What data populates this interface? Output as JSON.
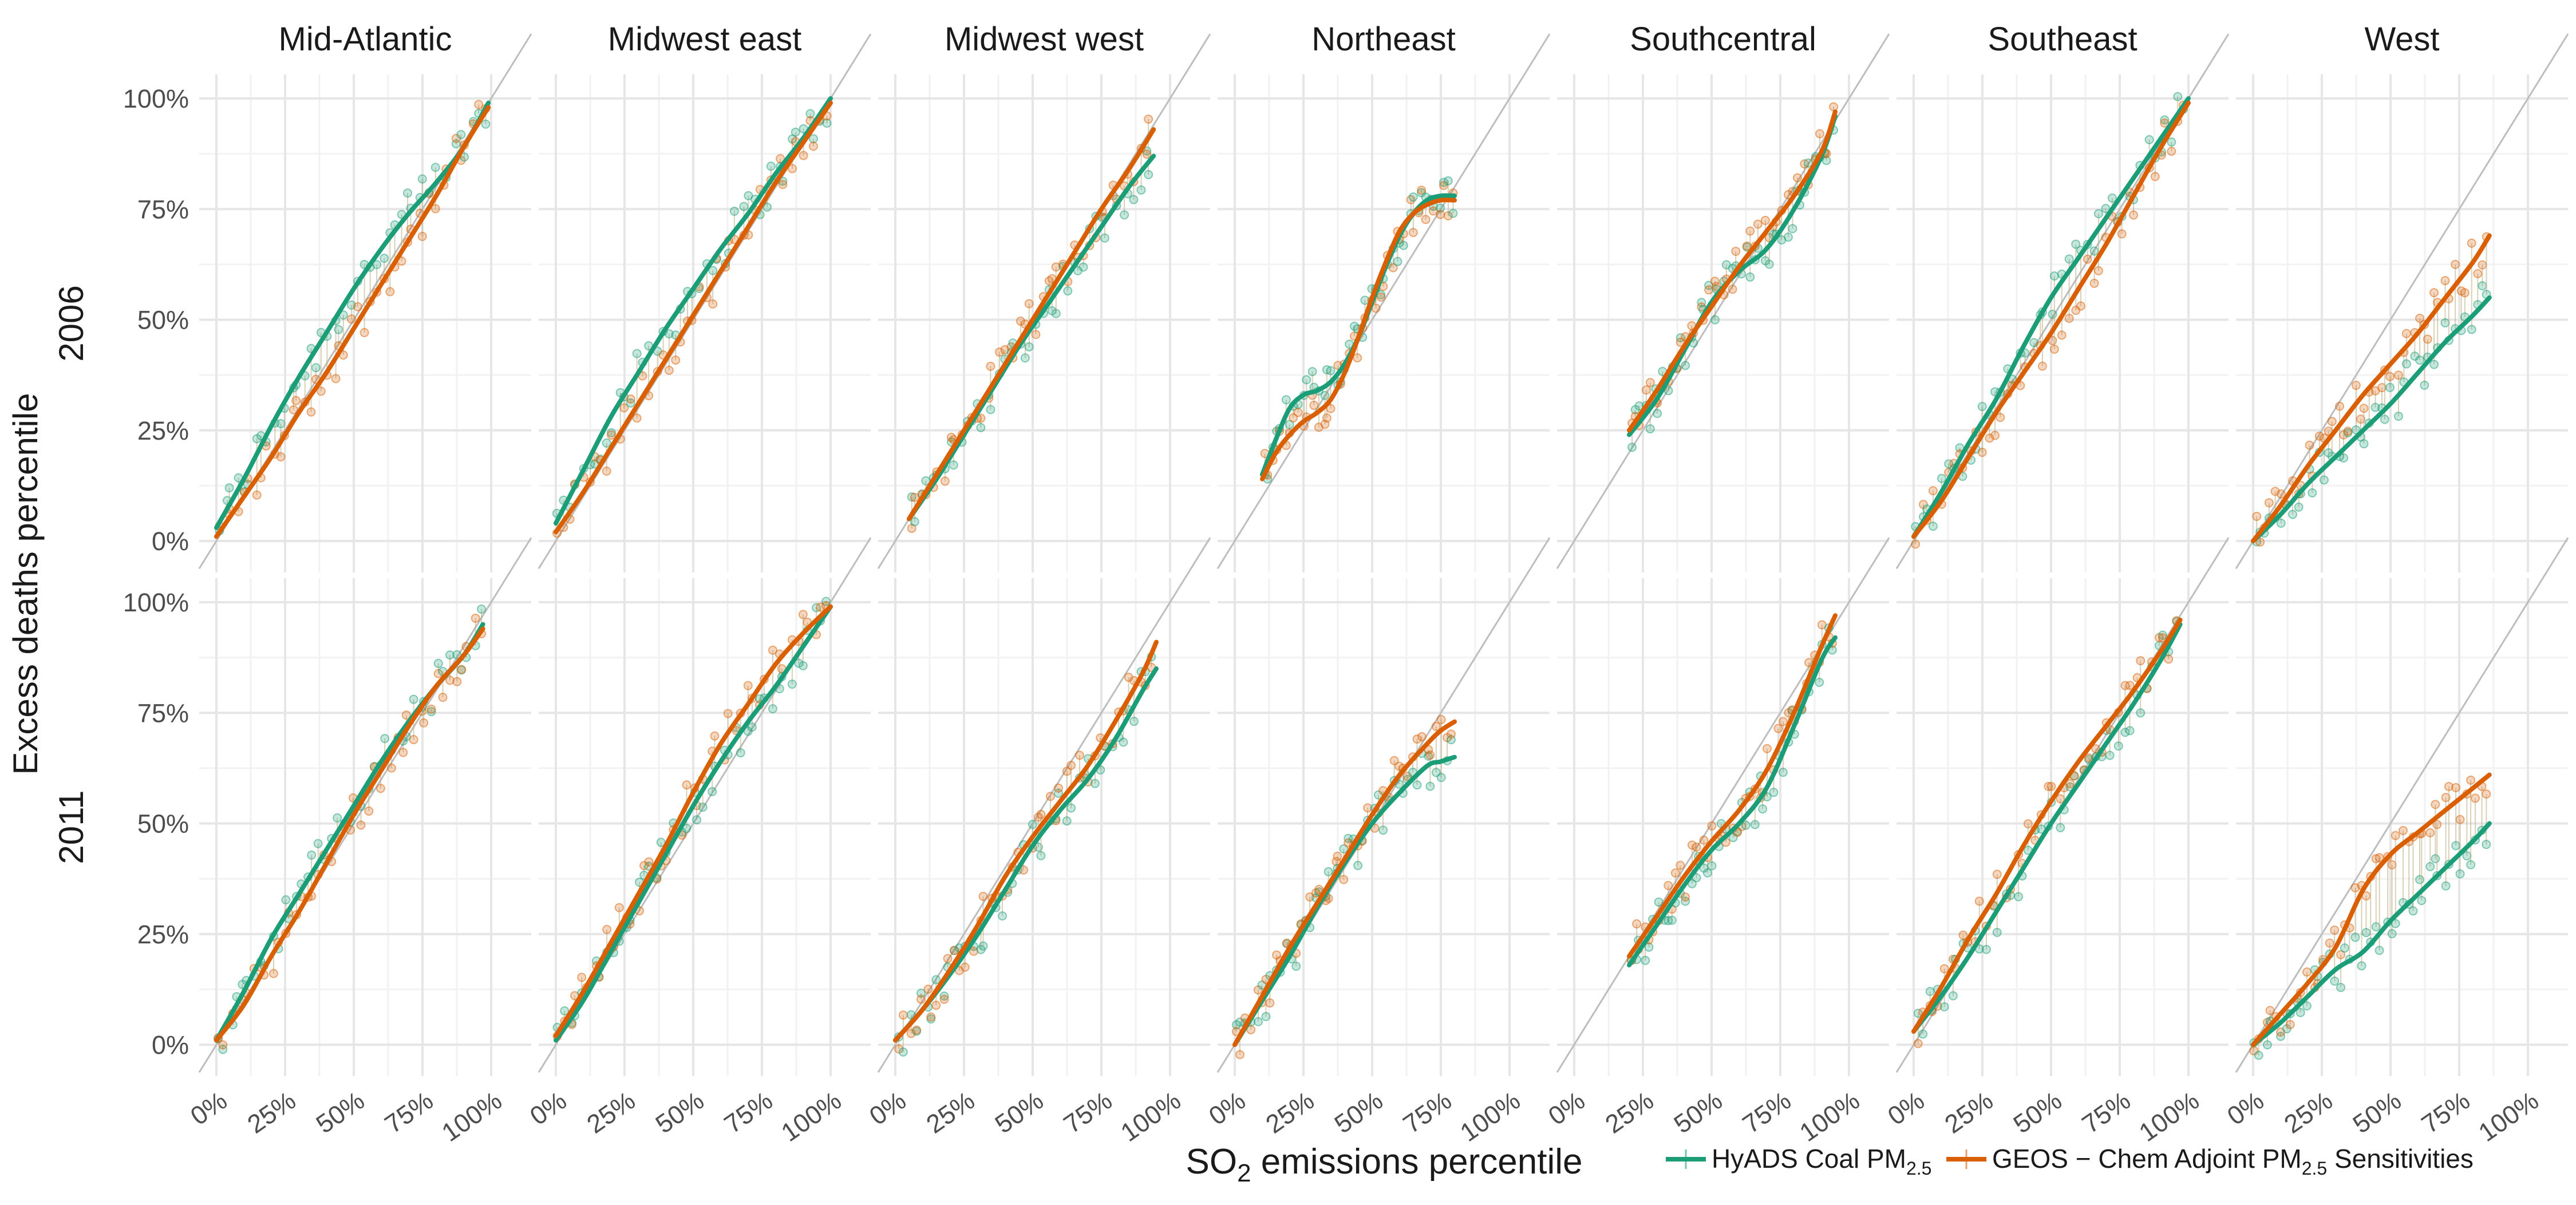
{
  "chart_data": {
    "type": "line",
    "facet_rows": [
      "2006",
      "2011"
    ],
    "facet_cols": [
      "Mid-Atlantic",
      "Midwest east",
      "Midwest west",
      "Northeast",
      "Southcentral",
      "Southeast",
      "West"
    ],
    "xlabel": "SO2 emissions percentile",
    "xlabel_parts": {
      "prefix": "SO",
      "subscript": "2",
      "suffix": " emissions percentile"
    },
    "ylabel": "Excess deaths percentile",
    "x_ticks": [
      "0%",
      "25%",
      "50%",
      "75%",
      "100%"
    ],
    "y_ticks": [
      "0%",
      "25%",
      "50%",
      "75%",
      "100%"
    ],
    "xlim": [
      0,
      100
    ],
    "ylim": [
      0,
      100
    ],
    "grid": true,
    "reference_line": "y = x",
    "legend_position": "bottom",
    "series": [
      {
        "name": "HyADS Coal PM2.5",
        "legend_parts": {
          "main": "HyADS Coal PM",
          "sub": "2.5",
          "tail": ""
        },
        "color": "#1b9e77"
      },
      {
        "name": "GEOS − Chem Adjoint PM2.5 Sensitivities",
        "legend_parts": {
          "main": "GEOS − Chem Adjoint PM",
          "sub": "2.5",
          "tail": " Sensitivities"
        },
        "color": "#d95f02"
      }
    ],
    "panels": [
      {
        "row": "2006",
        "col": "Mid-Atlantic",
        "hyads": [
          [
            0,
            3
          ],
          [
            10,
            14
          ],
          [
            20,
            26
          ],
          [
            30,
            37
          ],
          [
            40,
            47
          ],
          [
            50,
            57
          ],
          [
            60,
            66
          ],
          [
            70,
            74
          ],
          [
            80,
            81
          ],
          [
            90,
            89
          ],
          [
            99,
            99
          ]
        ],
        "geos": [
          [
            0,
            1
          ],
          [
            10,
            10
          ],
          [
            20,
            19
          ],
          [
            30,
            29
          ],
          [
            40,
            38
          ],
          [
            50,
            48
          ],
          [
            60,
            58
          ],
          [
            70,
            68
          ],
          [
            80,
            78
          ],
          [
            90,
            89
          ],
          [
            99,
            98
          ]
        ]
      },
      {
        "row": "2006",
        "col": "Midwest east",
        "hyads": [
          [
            0,
            4
          ],
          [
            10,
            16
          ],
          [
            20,
            28
          ],
          [
            30,
            38
          ],
          [
            40,
            48
          ],
          [
            50,
            57
          ],
          [
            60,
            66
          ],
          [
            70,
            74
          ],
          [
            80,
            83
          ],
          [
            90,
            91
          ],
          [
            100,
            100
          ]
        ],
        "geos": [
          [
            0,
            2
          ],
          [
            10,
            11
          ],
          [
            20,
            21
          ],
          [
            30,
            31
          ],
          [
            40,
            41
          ],
          [
            50,
            51
          ],
          [
            60,
            61
          ],
          [
            70,
            71
          ],
          [
            80,
            81
          ],
          [
            90,
            90
          ],
          [
            100,
            99
          ]
        ]
      },
      {
        "row": "2006",
        "col": "Midwest west",
        "hyads": [
          [
            5,
            5
          ],
          [
            15,
            14
          ],
          [
            25,
            24
          ],
          [
            35,
            34
          ],
          [
            45,
            44
          ],
          [
            55,
            53
          ],
          [
            65,
            62
          ],
          [
            75,
            71
          ],
          [
            85,
            80
          ],
          [
            94,
            87
          ]
        ],
        "geos": [
          [
            5,
            5
          ],
          [
            15,
            15
          ],
          [
            25,
            25
          ],
          [
            35,
            35
          ],
          [
            45,
            45
          ],
          [
            55,
            55
          ],
          [
            65,
            65
          ],
          [
            75,
            75
          ],
          [
            85,
            84
          ],
          [
            94,
            93
          ]
        ]
      },
      {
        "row": "2006",
        "col": "Northeast",
        "hyads": [
          [
            10,
            15
          ],
          [
            15,
            23
          ],
          [
            20,
            30
          ],
          [
            25,
            33
          ],
          [
            30,
            34
          ],
          [
            35,
            36
          ],
          [
            40,
            40
          ],
          [
            45,
            46
          ],
          [
            50,
            54
          ],
          [
            55,
            62
          ],
          [
            60,
            69
          ],
          [
            65,
            74
          ],
          [
            70,
            77
          ],
          [
            75,
            78
          ],
          [
            80,
            78
          ]
        ],
        "geos": [
          [
            10,
            14
          ],
          [
            15,
            20
          ],
          [
            20,
            24
          ],
          [
            25,
            27
          ],
          [
            30,
            29
          ],
          [
            35,
            32
          ],
          [
            40,
            38
          ],
          [
            45,
            46
          ],
          [
            50,
            55
          ],
          [
            55,
            63
          ],
          [
            60,
            70
          ],
          [
            65,
            74
          ],
          [
            70,
            76
          ],
          [
            75,
            77
          ],
          [
            80,
            77
          ]
        ]
      },
      {
        "row": "2006",
        "col": "Southcentral",
        "hyads": [
          [
            20,
            24
          ],
          [
            30,
            32
          ],
          [
            40,
            43
          ],
          [
            50,
            54
          ],
          [
            60,
            61
          ],
          [
            70,
            66
          ],
          [
            80,
            75
          ],
          [
            90,
            87
          ],
          [
            95,
            96
          ]
        ],
        "geos": [
          [
            20,
            25
          ],
          [
            30,
            34
          ],
          [
            40,
            44
          ],
          [
            50,
            53
          ],
          [
            60,
            62
          ],
          [
            70,
            70
          ],
          [
            80,
            78
          ],
          [
            90,
            88
          ],
          [
            95,
            97
          ]
        ]
      },
      {
        "row": "2006",
        "col": "Southeast",
        "hyads": [
          [
            0,
            1
          ],
          [
            10,
            11
          ],
          [
            20,
            22
          ],
          [
            30,
            32
          ],
          [
            40,
            44
          ],
          [
            50,
            55
          ],
          [
            60,
            64
          ],
          [
            70,
            73
          ],
          [
            80,
            82
          ],
          [
            90,
            91
          ],
          [
            100,
            100
          ]
        ],
        "geos": [
          [
            0,
            1
          ],
          [
            10,
            9
          ],
          [
            20,
            19
          ],
          [
            30,
            29
          ],
          [
            40,
            38
          ],
          [
            50,
            47
          ],
          [
            60,
            57
          ],
          [
            70,
            67
          ],
          [
            80,
            78
          ],
          [
            90,
            89
          ],
          [
            100,
            99
          ]
        ]
      },
      {
        "row": "2006",
        "col": "West",
        "hyads": [
          [
            0,
            0
          ],
          [
            10,
            6
          ],
          [
            20,
            13
          ],
          [
            30,
            19
          ],
          [
            40,
            25
          ],
          [
            50,
            31
          ],
          [
            60,
            38
          ],
          [
            70,
            45
          ],
          [
            80,
            51
          ],
          [
            86,
            55
          ]
        ],
        "geos": [
          [
            0,
            0
          ],
          [
            10,
            8
          ],
          [
            20,
            17
          ],
          [
            30,
            25
          ],
          [
            40,
            33
          ],
          [
            50,
            40
          ],
          [
            60,
            47
          ],
          [
            70,
            55
          ],
          [
            80,
            63
          ],
          [
            86,
            69
          ]
        ]
      },
      {
        "row": "2011",
        "col": "Mid-Atlantic",
        "hyads": [
          [
            0,
            1
          ],
          [
            10,
            12
          ],
          [
            20,
            24
          ],
          [
            30,
            34
          ],
          [
            40,
            44
          ],
          [
            50,
            54
          ],
          [
            60,
            64
          ],
          [
            70,
            73
          ],
          [
            80,
            81
          ],
          [
            90,
            88
          ],
          [
            97,
            95
          ]
        ],
        "geos": [
          [
            0,
            1
          ],
          [
            10,
            9
          ],
          [
            20,
            20
          ],
          [
            30,
            30
          ],
          [
            40,
            41
          ],
          [
            50,
            52
          ],
          [
            60,
            62
          ],
          [
            70,
            72
          ],
          [
            80,
            81
          ],
          [
            90,
            88
          ],
          [
            97,
            94
          ]
        ]
      },
      {
        "row": "2011",
        "col": "Midwest east",
        "hyads": [
          [
            0,
            1
          ],
          [
            10,
            10
          ],
          [
            20,
            21
          ],
          [
            30,
            32
          ],
          [
            40,
            43
          ],
          [
            50,
            54
          ],
          [
            60,
            64
          ],
          [
            70,
            73
          ],
          [
            80,
            81
          ],
          [
            90,
            90
          ],
          [
            100,
            99
          ]
        ],
        "geos": [
          [
            0,
            2
          ],
          [
            10,
            12
          ],
          [
            20,
            23
          ],
          [
            30,
            34
          ],
          [
            40,
            45
          ],
          [
            50,
            57
          ],
          [
            60,
            68
          ],
          [
            70,
            77
          ],
          [
            80,
            86
          ],
          [
            90,
            93
          ],
          [
            100,
            99
          ]
        ]
      },
      {
        "row": "2011",
        "col": "Midwest west",
        "hyads": [
          [
            0,
            1
          ],
          [
            10,
            8
          ],
          [
            20,
            16
          ],
          [
            30,
            25
          ],
          [
            40,
            35
          ],
          [
            50,
            45
          ],
          [
            60,
            53
          ],
          [
            70,
            60
          ],
          [
            80,
            69
          ],
          [
            90,
            80
          ],
          [
            95,
            85
          ]
        ],
        "geos": [
          [
            0,
            1
          ],
          [
            10,
            8
          ],
          [
            20,
            17
          ],
          [
            30,
            27
          ],
          [
            40,
            38
          ],
          [
            50,
            47
          ],
          [
            60,
            55
          ],
          [
            70,
            63
          ],
          [
            80,
            73
          ],
          [
            90,
            84
          ],
          [
            95,
            91
          ]
        ]
      },
      {
        "row": "2011",
        "col": "Northeast",
        "hyads": [
          [
            0,
            0
          ],
          [
            10,
            10
          ],
          [
            20,
            20
          ],
          [
            30,
            31
          ],
          [
            40,
            41
          ],
          [
            50,
            50
          ],
          [
            60,
            57
          ],
          [
            70,
            63
          ],
          [
            75,
            64
          ],
          [
            80,
            65
          ]
        ],
        "geos": [
          [
            0,
            0
          ],
          [
            10,
            11
          ],
          [
            20,
            22
          ],
          [
            30,
            32
          ],
          [
            40,
            42
          ],
          [
            50,
            52
          ],
          [
            60,
            61
          ],
          [
            70,
            68
          ],
          [
            75,
            71
          ],
          [
            80,
            73
          ]
        ]
      },
      {
        "row": "2011",
        "col": "Southcentral",
        "hyads": [
          [
            20,
            18
          ],
          [
            30,
            27
          ],
          [
            40,
            36
          ],
          [
            50,
            44
          ],
          [
            60,
            50
          ],
          [
            70,
            58
          ],
          [
            80,
            72
          ],
          [
            90,
            87
          ],
          [
            95,
            92
          ]
        ],
        "geos": [
          [
            20,
            20
          ],
          [
            30,
            29
          ],
          [
            40,
            38
          ],
          [
            50,
            46
          ],
          [
            60,
            53
          ],
          [
            70,
            62
          ],
          [
            80,
            75
          ],
          [
            90,
            90
          ],
          [
            95,
            97
          ]
        ]
      },
      {
        "row": "2011",
        "col": "Southeast",
        "hyads": [
          [
            0,
            3
          ],
          [
            10,
            11
          ],
          [
            20,
            20
          ],
          [
            30,
            30
          ],
          [
            40,
            40
          ],
          [
            50,
            50
          ],
          [
            60,
            59
          ],
          [
            70,
            68
          ],
          [
            80,
            77
          ],
          [
            90,
            87
          ],
          [
            97,
            95
          ]
        ],
        "geos": [
          [
            0,
            3
          ],
          [
            10,
            13
          ],
          [
            20,
            24
          ],
          [
            30,
            34
          ],
          [
            40,
            45
          ],
          [
            50,
            55
          ],
          [
            60,
            64
          ],
          [
            70,
            72
          ],
          [
            80,
            80
          ],
          [
            90,
            89
          ],
          [
            97,
            96
          ]
        ]
      },
      {
        "row": "2011",
        "col": "West",
        "hyads": [
          [
            0,
            0
          ],
          [
            10,
            5
          ],
          [
            20,
            11
          ],
          [
            30,
            17
          ],
          [
            40,
            21
          ],
          [
            50,
            28
          ],
          [
            60,
            34
          ],
          [
            70,
            40
          ],
          [
            80,
            46
          ],
          [
            86,
            50
          ]
        ],
        "geos": [
          [
            0,
            0
          ],
          [
            10,
            7
          ],
          [
            20,
            14
          ],
          [
            30,
            22
          ],
          [
            40,
            35
          ],
          [
            50,
            43
          ],
          [
            60,
            48
          ],
          [
            70,
            53
          ],
          [
            80,
            58
          ],
          [
            86,
            61
          ]
        ]
      }
    ]
  }
}
